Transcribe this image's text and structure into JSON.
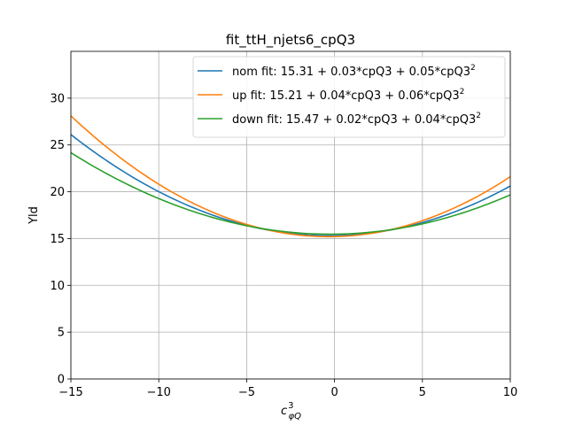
{
  "chart_data": {
    "type": "line",
    "title": "fit_ttH_njets6_cpQ3",
    "xlabel": "c",
    "xlabel_sup": "3",
    "xlabel_sub": "φQ",
    "ylabel": "Yld",
    "xlim": [
      -15,
      10
    ],
    "ylim": [
      0,
      35
    ],
    "xticks": [
      -15,
      -10,
      -5,
      0,
      5,
      10
    ],
    "xtick_labels": [
      "−15",
      "−10",
      "−5",
      "0",
      "5",
      "10"
    ],
    "yticks": [
      0,
      5,
      10,
      15,
      20,
      25,
      30
    ],
    "ytick_labels": [
      "0",
      "5",
      "10",
      "15",
      "20",
      "25",
      "30"
    ],
    "grid": true,
    "legend_position": "top-right",
    "series": [
      {
        "name": "nom fit: 15.31 + 0.03*cpQ3 + 0.05*cpQ3",
        "name_sup": "2",
        "color": "#1f77b4",
        "coefficients": [
          15.31,
          0.03,
          0.05
        ]
      },
      {
        "name": "up fit: 15.21 + 0.04*cpQ3 + 0.06*cpQ3",
        "name_sup": "2",
        "color": "#ff7f0e",
        "coefficients": [
          15.21,
          0.04,
          0.06
        ]
      },
      {
        "name": "down fit: 15.47 + 0.02*cpQ3 + 0.04*cpQ3",
        "name_sup": "2",
        "color": "#2ca02c",
        "coefficients": [
          15.47,
          0.02,
          0.04
        ]
      }
    ]
  }
}
